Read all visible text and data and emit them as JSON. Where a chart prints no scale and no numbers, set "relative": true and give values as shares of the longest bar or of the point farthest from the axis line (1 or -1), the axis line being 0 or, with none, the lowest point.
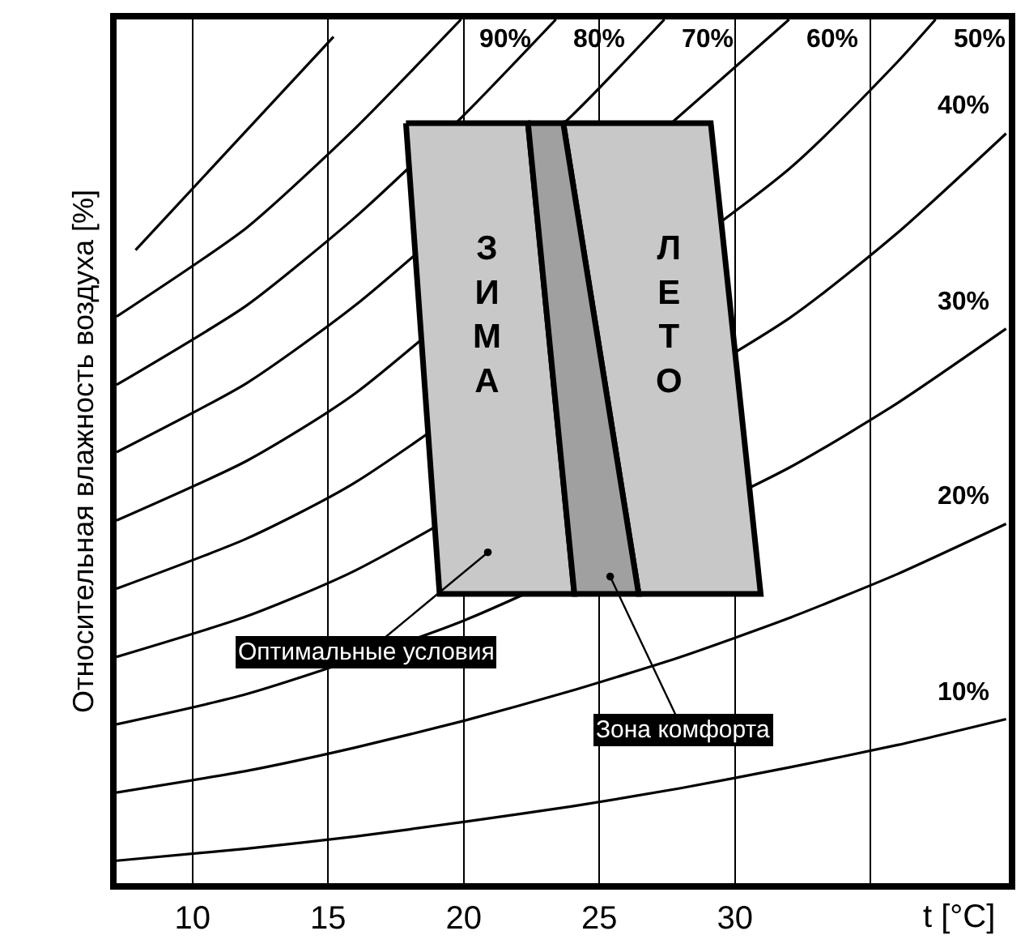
{
  "chart_data": {
    "type": "line",
    "relative": true,
    "xlabel": "t [°C]",
    "ylabel": "Относительная влажность воздуха [%]",
    "xlim": [
      7.2,
      40.1
    ],
    "xticks": [
      10,
      15,
      20,
      25,
      30,
      {
        "value": 35,
        "label": null
      }
    ],
    "grid": "x",
    "legend": false,
    "marker": "none",
    "line_style": "solid",
    "series": [
      {
        "name": "10%",
        "color": "#000000",
        "x": [
          7.2,
          12,
          16,
          20,
          24,
          28,
          32,
          36,
          40
        ],
        "values": [
          0.026,
          0.04,
          0.054,
          0.071,
          0.089,
          0.11,
          0.134,
          0.16,
          0.19
        ]
      },
      {
        "name": "20%",
        "color": "#000000",
        "x": [
          7.2,
          12,
          16,
          20,
          24,
          28,
          32,
          36,
          40
        ],
        "values": [
          0.105,
          0.13,
          0.157,
          0.188,
          0.223,
          0.262,
          0.307,
          0.358,
          0.416
        ]
      },
      {
        "name": "30%",
        "color": "#000000",
        "x": [
          7.2,
          12,
          16,
          20,
          24,
          28,
          32,
          36,
          40
        ],
        "values": [
          0.184,
          0.219,
          null,
          0.304,
          null,
          null,
          0.481,
          0.556,
          0.642
        ]
      },
      {
        "name": "40%",
        "color": "#000000",
        "x": [
          7.2,
          12,
          16,
          20,
          24,
          28,
          32,
          36,
          40
        ],
        "values": [
          0.262,
          0.309,
          0.362,
          null,
          null,
          null,
          0.654,
          0.753,
          0.868
        ]
      },
      {
        "name": "50%",
        "color": "#000000",
        "x": [
          7.2,
          12,
          16,
          20,
          24,
          28,
          32,
          36,
          37.4
        ],
        "values": [
          0.341,
          0.399,
          0.464,
          null,
          null,
          null,
          0.827,
          0.951,
          1
        ]
      },
      {
        "name": "60%",
        "color": "#000000",
        "x": [
          7.2,
          12,
          16,
          20,
          24,
          28,
          32
        ],
        "values": [
          0.42,
          0.489,
          0.567,
          null,
          null,
          null,
          1
        ]
      },
      {
        "name": "70%",
        "color": "#000000",
        "x": [
          7.2,
          12,
          16,
          20,
          24,
          27.4
        ],
        "values": [
          0.499,
          0.579,
          0.669,
          null,
          0.889,
          1
        ]
      },
      {
        "name": "80%",
        "color": "#000000",
        "x": [
          7.2,
          12,
          16,
          20,
          23.4
        ],
        "values": [
          0.577,
          0.669,
          0.771,
          0.889,
          1
        ]
      },
      {
        "name": "90%",
        "color": "#000000",
        "x": [
          7.2,
          12,
          16,
          19.9
        ],
        "values": [
          0.656,
          0.759,
          0.874,
          1
        ]
      },
      {
        "color": "#000000",
        "x": [
          7.9,
          15.2
        ],
        "values": [
          0.733,
          0.98
        ]
      },
      {
        "name": "ЗИМА",
        "type": "area",
        "color": "#c8c8c8",
        "x": [
          17.87,
          22.37,
          24.08,
          19.11,
          17.87
        ],
        "values": [
          0.88,
          0.88,
          0.335,
          0.335,
          0.88
        ]
      },
      {
        "name": "ЛЕТО",
        "type": "area",
        "color": "#c8c8c8",
        "x": [
          23.67,
          29.11,
          30.95,
          26.45,
          23.67
        ],
        "values": [
          0.88,
          0.88,
          0.335,
          0.335,
          0.88
        ]
      },
      {
        "type": "area",
        "color": "#a0a0a0",
        "x": [
          22.37,
          23.67,
          26.45,
          24.08,
          22.37
        ],
        "values": [
          0.88,
          0.88,
          0.335,
          0.335,
          0.88
        ]
      }
    ],
    "annotations": [
      {
        "text": "Оптимальные условия",
        "x": 20.89,
        "y": 0.383
      },
      {
        "text": "Зона комфорта",
        "x": 25.4,
        "y": 0.355
      }
    ]
  }
}
